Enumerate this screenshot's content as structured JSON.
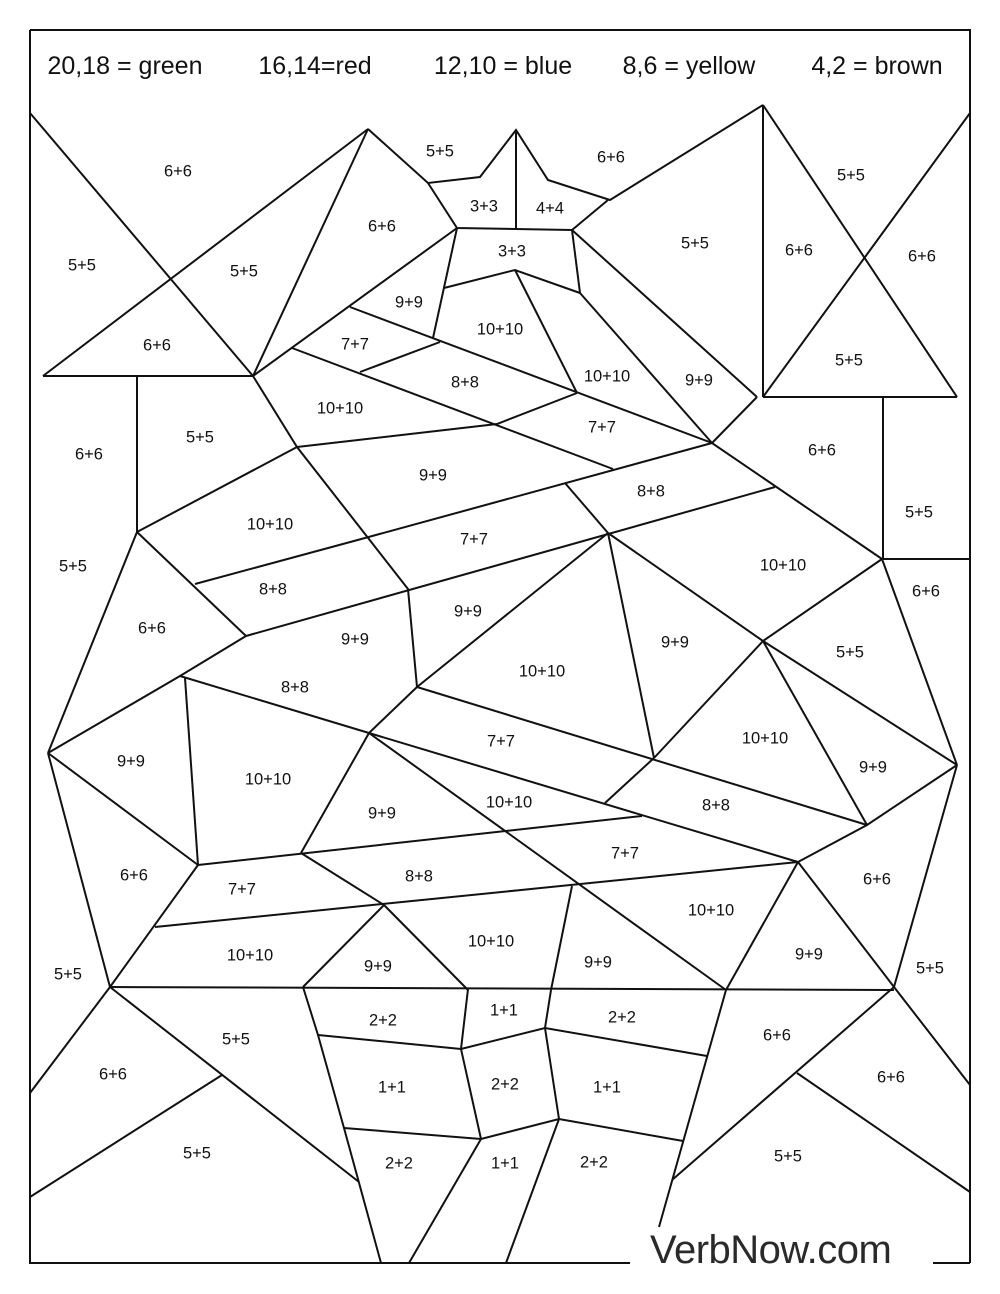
{
  "legend": [
    {
      "label": "20,18 = green",
      "color": "#2e9e3e"
    },
    {
      "label": "16,14=red",
      "color": "#d62828"
    },
    {
      "label": "12,10 = blue",
      "color": "#1f5fd6"
    },
    {
      "label": "8,6 = yellow",
      "color": "#f2d21b"
    },
    {
      "label": "4,2 = brown",
      "color": "#7a4a1e"
    }
  ],
  "regions": [
    "6+6",
    "5+5",
    "6+6",
    "5+5",
    "3+3",
    "4+4",
    "6+6",
    "3+3",
    "5+5",
    "5+5",
    "5+5",
    "6+6",
    "6+6",
    "9+9",
    "10+10",
    "6+6",
    "7+7",
    "8+8",
    "10+10",
    "9+9",
    "5+5",
    "10+10",
    "5+5",
    "7+7",
    "6+6",
    "6+6",
    "9+9",
    "8+8",
    "10+10",
    "5+5",
    "7+7",
    "5+5",
    "10+10",
    "8+8",
    "6+6",
    "6+6",
    "9+9",
    "9+9",
    "9+9",
    "10+10",
    "5+5",
    "8+8",
    "10+10",
    "7+7",
    "9+9",
    "9+9",
    "10+10",
    "10+10",
    "8+8",
    "9+9",
    "7+7",
    "6+6",
    "6+6",
    "8+8",
    "7+7",
    "10+10",
    "10+10",
    "10+10",
    "9+9",
    "9+9",
    "9+9",
    "5+5",
    "5+5",
    "1+1",
    "2+2",
    "2+2",
    "5+5",
    "6+6",
    "6+6",
    "6+6",
    "2+2",
    "1+1",
    "1+1",
    "5+5",
    "2+2",
    "1+1",
    "2+2",
    "5+5"
  ],
  "watermark": "VerbNow.com"
}
